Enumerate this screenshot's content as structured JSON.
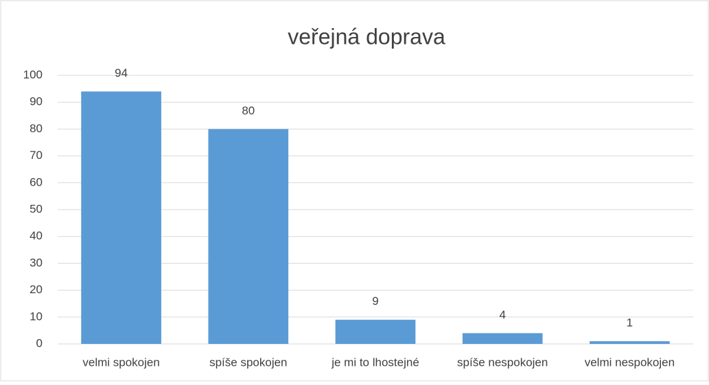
{
  "chart_data": {
    "type": "bar",
    "title": "veřejná doprava",
    "categories": [
      "velmi spokojen",
      "spíše spokojen",
      "je mi to lhostejné",
      "spíše nespokojen",
      "velmi nespokojen"
    ],
    "values": [
      94,
      80,
      9,
      4,
      1
    ],
    "color": "#5b9bd5",
    "ylim": [
      0,
      100
    ],
    "yticks": [
      0,
      10,
      20,
      30,
      40,
      50,
      60,
      70,
      80,
      90,
      100
    ],
    "grid": true
  }
}
